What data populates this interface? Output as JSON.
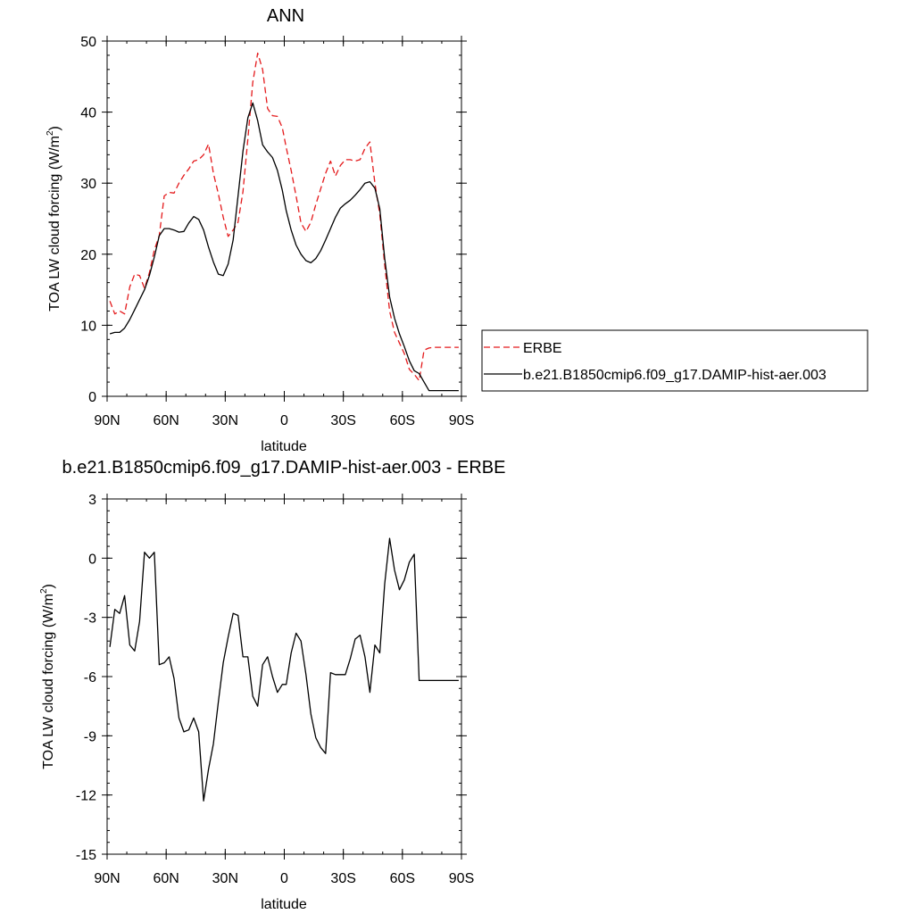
{
  "chart_data": [
    {
      "type": "line",
      "title": "ANN",
      "xlabel": "latitude",
      "ylabel": "TOA LW cloud forcing (W/m",
      "ylabel_sup": "2",
      "ylabel_close": ")",
      "xlim": [
        90,
        -90
      ],
      "ylim": [
        0,
        50
      ],
      "x_ticks": [
        90,
        60,
        30,
        0,
        -30,
        -60,
        -90
      ],
      "x_tick_labels": [
        "90N",
        "60N",
        "30N",
        "0",
        "30S",
        "60S",
        "90S"
      ],
      "y_ticks": [
        0,
        10,
        20,
        30,
        40,
        50
      ],
      "y_tick_labels": [
        "0",
        "10",
        "20",
        "30",
        "40",
        "50"
      ],
      "grid": false,
      "legend_position": "right",
      "series": [
        {
          "name": "ERBE",
          "color": "#e41a1c",
          "dash": "dashed",
          "x": [
            88.6,
            86.1,
            83.6,
            81.1,
            78.5,
            76.0,
            73.5,
            71.0,
            68.5,
            66.0,
            63.5,
            61.0,
            58.5,
            56.0,
            53.5,
            51.0,
            48.5,
            46.0,
            43.5,
            41.0,
            38.5,
            36.0,
            33.5,
            31.0,
            28.5,
            26.0,
            23.5,
            21.0,
            18.5,
            16.0,
            13.5,
            11.0,
            8.5,
            6.0,
            3.5,
            1.0,
            -1.0,
            -3.5,
            -6.0,
            -8.5,
            -11.0,
            -13.5,
            -16.0,
            -18.5,
            -21.0,
            -23.5,
            -26.0,
            -28.5,
            -31.0,
            -33.5,
            -36.0,
            -38.5,
            -41.0,
            -43.5,
            -46.0,
            -48.5,
            -51.0,
            -53.5,
            -56.0,
            -58.5,
            -61.0,
            -63.5,
            -66.0,
            -68.5,
            -71.0,
            -73.5,
            -76.0,
            -78.5,
            -81.1,
            -83.6,
            -86.1,
            -88.6
          ],
          "y": [
            13.4,
            11.6,
            12.0,
            11.6,
            15.4,
            17.2,
            17.0,
            15.2,
            17.4,
            20.6,
            22.6,
            28.2,
            28.7,
            28.6,
            30.0,
            31.1,
            32.0,
            33.1,
            33.3,
            34.0,
            35.5,
            31.4,
            28.5,
            25.2,
            22.5,
            23.4,
            24.5,
            28.8,
            36.2,
            44.2,
            48.3,
            46.0,
            40.5,
            39.5,
            39.4,
            37.8,
            35.0,
            31.8,
            28.2,
            24.4,
            23.2,
            24.5,
            27.0,
            29.2,
            31.4,
            33.1,
            31.0,
            32.5,
            33.3,
            33.3,
            33.1,
            33.3,
            34.9,
            35.8,
            30.0,
            25.6,
            18.5,
            12.0,
            9.0,
            7.5,
            6.0,
            3.8,
            3.1,
            2.2,
            6.5,
            6.8,
            6.9,
            6.9,
            6.9,
            6.9,
            6.9,
            6.9
          ]
        },
        {
          "name": "b.e21.B1850cmip6.f09_g17.DAMIP-hist-aer.003",
          "color": "#000000",
          "dash": "solid",
          "x": [
            88.6,
            86.1,
            83.6,
            81.1,
            78.5,
            76.0,
            73.5,
            71.0,
            68.5,
            66.0,
            63.5,
            61.0,
            58.5,
            56.0,
            53.5,
            51.0,
            48.5,
            46.0,
            43.5,
            41.0,
            38.5,
            36.0,
            33.5,
            31.0,
            28.5,
            26.0,
            23.5,
            21.0,
            18.5,
            16.0,
            13.5,
            11.0,
            8.5,
            6.0,
            3.5,
            1.0,
            -1.0,
            -3.5,
            -6.0,
            -8.5,
            -11.0,
            -13.5,
            -16.0,
            -18.5,
            -21.0,
            -23.5,
            -26.0,
            -28.5,
            -31.0,
            -33.5,
            -36.0,
            -38.5,
            -41.0,
            -43.5,
            -46.0,
            -48.5,
            -51.0,
            -53.5,
            -56.0,
            -58.5,
            -61.0,
            -63.5,
            -66.0,
            -68.5,
            -71.0,
            -73.5,
            -76.0,
            -78.5,
            -81.1,
            -83.6,
            -86.1,
            -88.6
          ],
          "y": [
            8.8,
            9.0,
            9.0,
            9.6,
            10.8,
            12.2,
            13.6,
            15.0,
            17.0,
            19.6,
            22.6,
            23.6,
            23.6,
            23.4,
            23.1,
            23.2,
            24.4,
            25.3,
            24.9,
            23.4,
            21.0,
            18.9,
            17.2,
            17.0,
            18.6,
            22.0,
            28.2,
            34.5,
            39.2,
            41.3,
            38.8,
            35.4,
            34.4,
            33.6,
            31.8,
            29.0,
            26.1,
            23.4,
            21.3,
            20.0,
            19.1,
            18.8,
            19.4,
            20.5,
            22.0,
            23.6,
            25.2,
            26.5,
            27.1,
            27.6,
            28.3,
            29.1,
            30.0,
            30.2,
            29.3,
            26.4,
            19.4,
            14.0,
            11.0,
            8.8,
            7.0,
            5.0,
            3.6,
            3.2,
            2.0,
            0.8,
            0.8,
            0.8,
            0.8,
            0.8,
            0.8,
            0.8
          ]
        }
      ]
    },
    {
      "type": "line",
      "title": "b.e21.B1850cmip6.f09_g17.DAMIP-hist-aer.003 - ERBE",
      "xlabel": "latitude",
      "ylabel": "TOA LW cloud forcing (W/m",
      "ylabel_sup": "2",
      "ylabel_close": ")",
      "xlim": [
        90,
        -90
      ],
      "ylim": [
        -15,
        3
      ],
      "x_ticks": [
        90,
        60,
        30,
        0,
        -30,
        -60,
        -90
      ],
      "x_tick_labels": [
        "90N",
        "60N",
        "30N",
        "0",
        "30S",
        "60S",
        "90S"
      ],
      "y_ticks": [
        -15,
        -12,
        -9,
        -6,
        -3,
        0,
        3
      ],
      "y_tick_labels": [
        "-15",
        "-12",
        "-9",
        "-6",
        "-3",
        "0",
        "3"
      ],
      "grid": false,
      "series": [
        {
          "color": "#000000",
          "dash": "solid",
          "x": [
            88.6,
            86.1,
            83.6,
            81.1,
            78.5,
            76.0,
            73.5,
            71.0,
            68.5,
            66.0,
            63.5,
            61.0,
            58.5,
            56.0,
            53.5,
            51.0,
            48.5,
            46.0,
            43.5,
            41.0,
            38.5,
            36.0,
            33.5,
            31.0,
            28.5,
            26.0,
            23.5,
            21.0,
            18.5,
            16.0,
            13.5,
            11.0,
            8.5,
            6.0,
            3.5,
            1.0,
            -1.0,
            -3.5,
            -6.0,
            -8.5,
            -11.0,
            -13.5,
            -16.0,
            -18.5,
            -21.0,
            -23.5,
            -26.0,
            -28.5,
            -31.0,
            -33.5,
            -36.0,
            -38.5,
            -41.0,
            -43.5,
            -46.0,
            -48.5,
            -51.0,
            -53.5,
            -56.0,
            -58.5,
            -61.0,
            -63.5,
            -66.0,
            -68.5,
            -71.0,
            -73.5,
            -76.0,
            -78.5,
            -81.1,
            -83.6,
            -86.1,
            -88.6
          ],
          "y": [
            -4.5,
            -2.6,
            -2.8,
            -1.9,
            -4.4,
            -4.7,
            -3.2,
            0.3,
            0.0,
            0.3,
            -5.4,
            -5.3,
            -5.0,
            -6.1,
            -8.1,
            -8.8,
            -8.7,
            -8.1,
            -8.8,
            -12.3,
            -10.7,
            -9.4,
            -7.3,
            -5.3,
            -4.0,
            -2.8,
            -2.9,
            -5.0,
            -5.0,
            -7.0,
            -7.5,
            -5.4,
            -5.0,
            -6.0,
            -6.8,
            -6.4,
            -6.4,
            -4.8,
            -3.8,
            -4.2,
            -5.9,
            -7.9,
            -9.1,
            -9.6,
            -9.9,
            -5.8,
            -5.9,
            -5.9,
            -5.9,
            -5.1,
            -4.1,
            -3.9,
            -5.0,
            -6.8,
            -4.4,
            -4.8,
            -1.3,
            1.0,
            -0.6,
            -1.6,
            -1.1,
            -0.2,
            0.2,
            -6.2,
            -6.2,
            -6.2,
            -6.2,
            -6.2,
            -6.2,
            -6.2,
            -6.2,
            -6.2
          ]
        }
      ]
    }
  ]
}
